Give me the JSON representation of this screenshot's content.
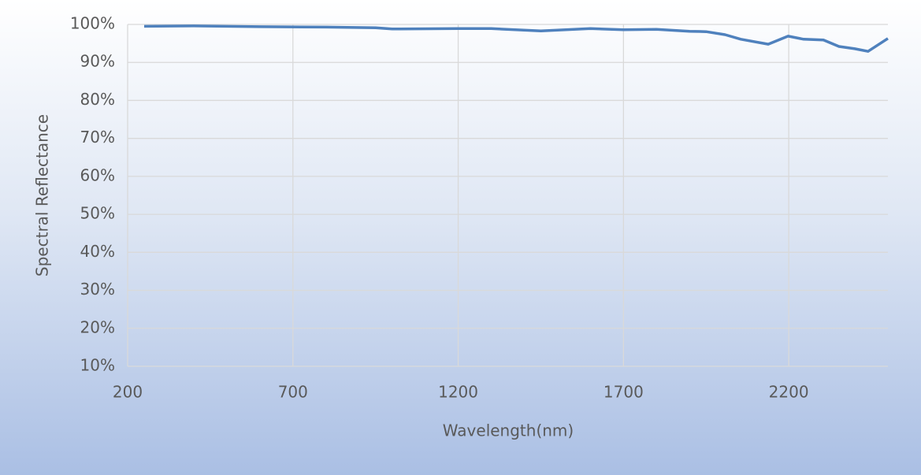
{
  "chart_data": {
    "type": "line",
    "x_label": "Wavelength(nm)",
    "y_label": "Spectral Reflectance",
    "xlim": [
      200,
      2500
    ],
    "xticks": [
      200,
      700,
      1200,
      1700,
      2200
    ],
    "ylim": [
      10,
      100
    ],
    "yticks": [
      {
        "value": 10,
        "label": "10%"
      },
      {
        "value": 20,
        "label": "20%"
      },
      {
        "value": 30,
        "label": "30%"
      },
      {
        "value": 40,
        "label": "40%"
      },
      {
        "value": 50,
        "label": "50%"
      },
      {
        "value": 60,
        "label": "60%"
      },
      {
        "value": 70,
        "label": "70%"
      },
      {
        "value": 80,
        "label": "80%"
      },
      {
        "value": 90,
        "label": "90%"
      },
      {
        "value": 100,
        "label": "100%"
      }
    ],
    "grid": true,
    "x": [
      250,
      400,
      600,
      800,
      950,
      1000,
      1200,
      1300,
      1450,
      1600,
      1700,
      1800,
      1900,
      1950,
      2007,
      2055,
      2138,
      2198,
      2245,
      2305,
      2352,
      2400,
      2440,
      2500
    ],
    "series": [
      {
        "color": "#4f81bd",
        "values": [
          99.5,
          99.6,
          99.4,
          99.3,
          99.1,
          98.8,
          98.9,
          98.9,
          98.3,
          98.9,
          98.6,
          98.7,
          98.2,
          98.1,
          97.3,
          96.1,
          94.8,
          96.9,
          96.1,
          95.9,
          94.2,
          93.6,
          92.9,
          96.3
        ]
      }
    ]
  }
}
